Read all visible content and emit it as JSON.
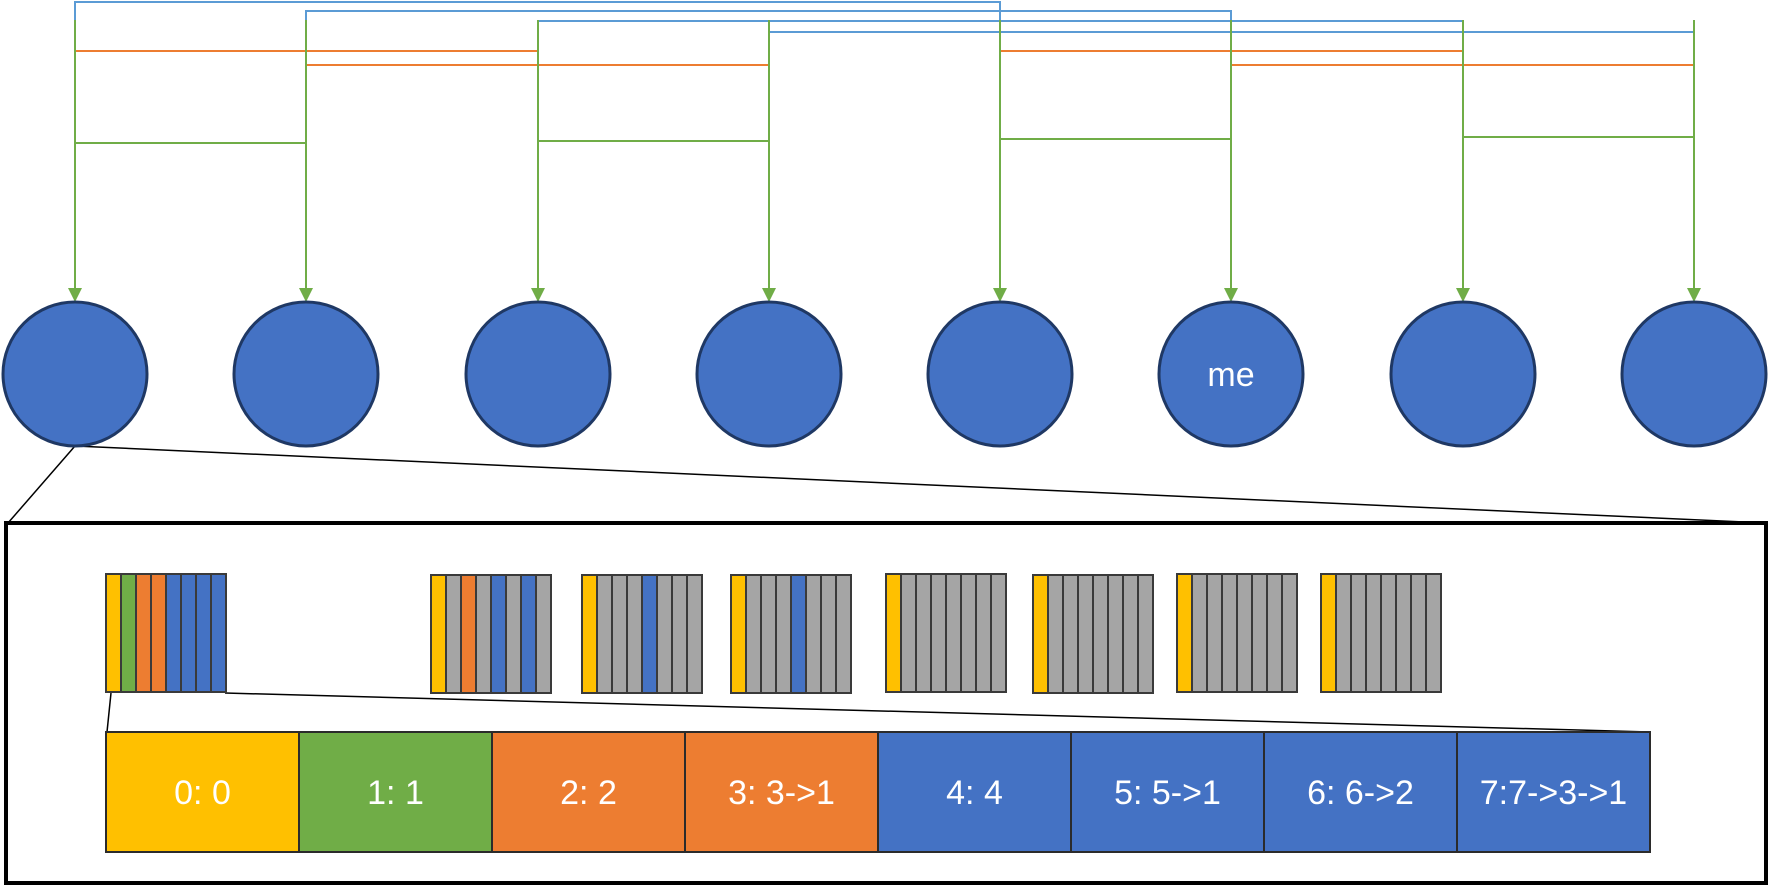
{
  "nodes": [
    {
      "label": ""
    },
    {
      "label": ""
    },
    {
      "label": ""
    },
    {
      "label": ""
    },
    {
      "label": ""
    },
    {
      "label": "me"
    },
    {
      "label": ""
    },
    {
      "label": ""
    }
  ],
  "mini_tables": [
    [
      "yellow",
      "green",
      "orange",
      "orange",
      "blue",
      "blue",
      "blue",
      "blue"
    ],
    [
      "yellow",
      "gray",
      "orange",
      "gray",
      "blue",
      "gray",
      "blue",
      "gray"
    ],
    [
      "yellow",
      "gray",
      "gray",
      "gray",
      "blue",
      "gray",
      "gray",
      "gray"
    ],
    [
      "yellow",
      "gray",
      "gray",
      "gray",
      "blue",
      "gray",
      "gray",
      "gray"
    ],
    [
      "yellow",
      "gray",
      "gray",
      "gray",
      "gray",
      "gray",
      "gray",
      "gray"
    ],
    [
      "yellow",
      "gray",
      "gray",
      "gray",
      "gray",
      "gray",
      "gray",
      "gray"
    ],
    [
      "yellow",
      "gray",
      "gray",
      "gray",
      "gray",
      "gray",
      "gray",
      "gray"
    ],
    [
      "yellow",
      "gray",
      "gray",
      "gray",
      "gray",
      "gray",
      "gray",
      "gray"
    ]
  ],
  "detail_table": [
    {
      "label": "0: 0",
      "color": "yellow"
    },
    {
      "label": "1: 1",
      "color": "green"
    },
    {
      "label": "2: 2",
      "color": "orange"
    },
    {
      "label": "3: 3->1",
      "color": "orange"
    },
    {
      "label": "4: 4",
      "color": "blue"
    },
    {
      "label": "5: 5->1",
      "color": "blue"
    },
    {
      "label": "6: 6->2",
      "color": "blue"
    },
    {
      "label": "7:7->3->1",
      "color": "blue"
    }
  ],
  "colors": {
    "yellow": "#FFC000",
    "green": "#70AD47",
    "orange": "#ED7D31",
    "blue": "#4472C4",
    "gray": "#A5A5A5",
    "node_fill": "#4472C4",
    "node_stroke": "#1F3864",
    "link_blue": "#5B9BD5",
    "link_orange": "#ED7D31",
    "link_green": "#70AD47"
  }
}
